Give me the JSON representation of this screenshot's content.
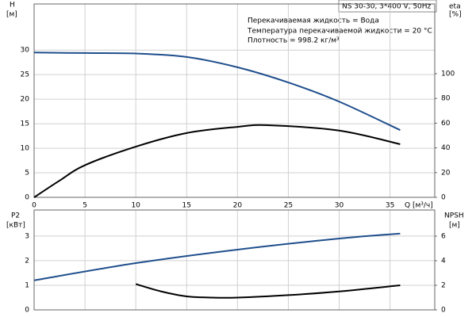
{
  "chart_data": [
    {
      "type": "line",
      "title": "NS 30-30, 3*400 V, 50Hz",
      "annotations": [
        "Перекачиваемая жидкость = Вода",
        "Температура перекачиваемой жидкости = 20 °C",
        "Плотность = 998.2 кг/м³"
      ],
      "ylabel": "H",
      "yunit": "[м]",
      "y2label": "eta",
      "y2unit": "[%]",
      "xlabel": "Q [м³/ч]",
      "xlim": [
        0,
        39.4
      ],
      "xticks": [
        0,
        5,
        10,
        15,
        20,
        25,
        30,
        35
      ],
      "ylim": [
        0,
        39.4
      ],
      "yticks": [
        0,
        5,
        10,
        15,
        20,
        25,
        30
      ],
      "y2lim": [
        0,
        156.4
      ],
      "y2ticks": [
        0,
        20,
        40,
        60,
        80,
        100
      ],
      "grid": true,
      "series": [
        {
          "name": "H",
          "color": "#1f4e8c",
          "x": [
            0,
            5,
            10,
            15,
            20,
            25,
            30,
            36
          ],
          "values": [
            29.5,
            29.4,
            29.3,
            28.6,
            26.5,
            23.4,
            19.5,
            13.7
          ]
        },
        {
          "name": "eta",
          "color": "#000000",
          "axis": "y2",
          "x": [
            0,
            2.5,
            5,
            10,
            15,
            20,
            23,
            30,
            36
          ],
          "values": [
            0,
            13.5,
            26,
            41,
            52,
            57,
            58.3,
            54,
            43
          ]
        }
      ]
    },
    {
      "type": "line",
      "ylabel": "P2",
      "yunit": "[кВт]",
      "y2label": "NPSH",
      "y2unit": "[м]",
      "xlim": [
        0,
        39.4
      ],
      "xticks": [
        0,
        5,
        10,
        15,
        20,
        25,
        30,
        35
      ],
      "ylim": [
        0,
        4.06
      ],
      "yticks": [
        0,
        1,
        2,
        3
      ],
      "y2lim": [
        0,
        8.13
      ],
      "y2ticks": [
        0,
        2,
        4,
        6
      ],
      "grid": true,
      "series": [
        {
          "name": "P2",
          "color": "#1f4e8c",
          "x": [
            0,
            10,
            20,
            30,
            36
          ],
          "values": [
            1.2,
            1.9,
            2.45,
            2.9,
            3.1
          ]
        },
        {
          "name": "NPSH",
          "color": "#000000",
          "axis": "y2",
          "x": [
            10,
            12.5,
            15,
            17.5,
            20,
            25,
            30,
            36
          ],
          "values": [
            2.1,
            1.5,
            1.1,
            1.0,
            1.0,
            1.2,
            1.5,
            2.0
          ]
        }
      ]
    }
  ]
}
